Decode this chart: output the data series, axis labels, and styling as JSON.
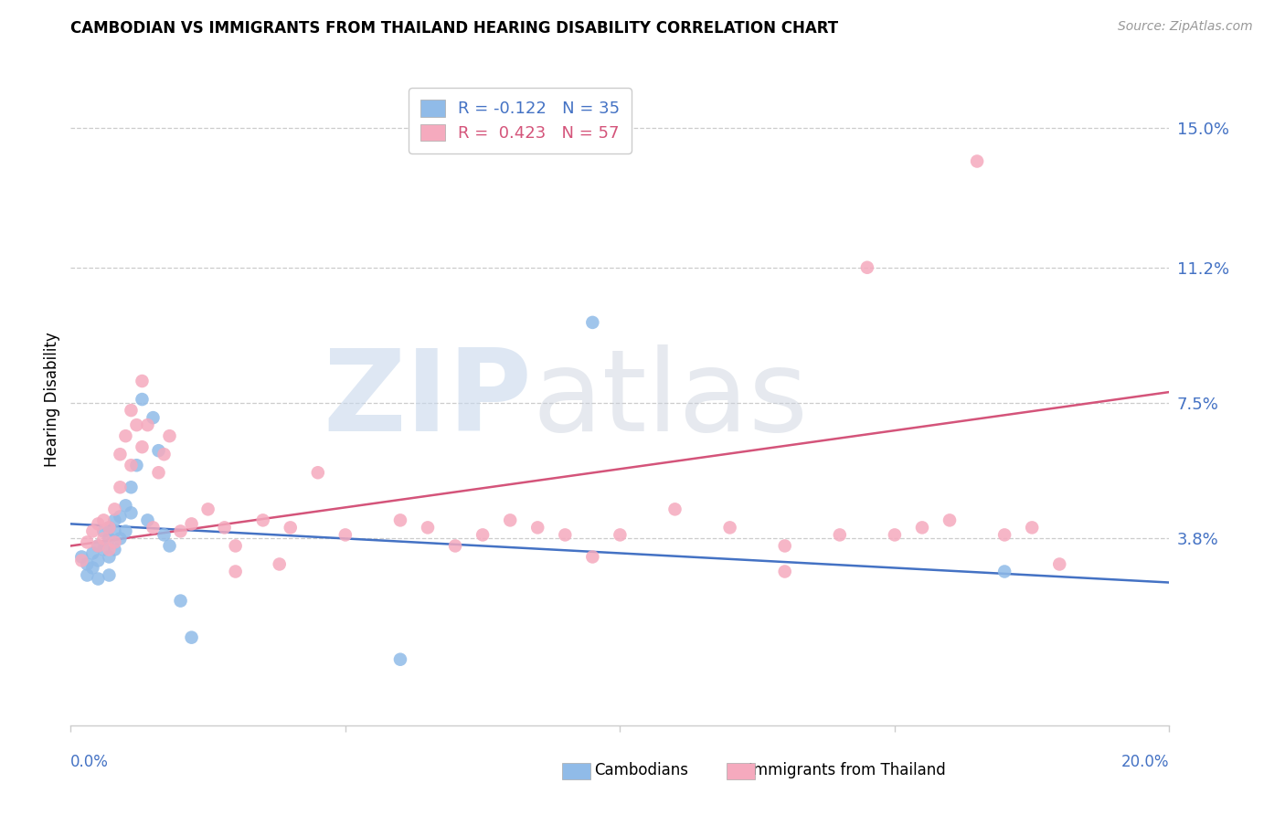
{
  "title": "CAMBODIAN VS IMMIGRANTS FROM THAILAND HEARING DISABILITY CORRELATION CHART",
  "source": "Source: ZipAtlas.com",
  "ylabel": "Hearing Disability",
  "xmin": 0.0,
  "xmax": 0.2,
  "ymin": -0.013,
  "ymax": 0.165,
  "cambodian_color": "#90BBE8",
  "thai_color": "#F5AABE",
  "blue_line_color": "#4472C4",
  "pink_line_color": "#D4547A",
  "axis_label_color": "#4472C4",
  "grid_color": "#CCCCCC",
  "legend_label1": "Cambodians",
  "legend_label2": "Immigrants from Thailand",
  "cambodian_R": -0.122,
  "cambodian_N": 35,
  "thai_R": 0.423,
  "thai_N": 57,
  "ytick_positions": [
    0.038,
    0.075,
    0.112,
    0.15
  ],
  "ytick_labels": [
    "3.8%",
    "7.5%",
    "11.2%",
    "15.0%"
  ],
  "blue_line_x": [
    0.0,
    0.2
  ],
  "blue_line_y": [
    0.042,
    0.026
  ],
  "pink_line_x": [
    0.0,
    0.2
  ],
  "pink_line_y": [
    0.036,
    0.078
  ],
  "cambodian_x": [
    0.002,
    0.003,
    0.003,
    0.004,
    0.004,
    0.005,
    0.005,
    0.005,
    0.006,
    0.006,
    0.007,
    0.007,
    0.007,
    0.007,
    0.008,
    0.008,
    0.008,
    0.009,
    0.009,
    0.01,
    0.01,
    0.011,
    0.011,
    0.012,
    0.013,
    0.014,
    0.015,
    0.016,
    0.017,
    0.018,
    0.02,
    0.022,
    0.06,
    0.095,
    0.17
  ],
  "cambodian_y": [
    0.033,
    0.031,
    0.028,
    0.034,
    0.03,
    0.036,
    0.032,
    0.027,
    0.04,
    0.035,
    0.041,
    0.038,
    0.033,
    0.028,
    0.043,
    0.04,
    0.035,
    0.044,
    0.038,
    0.047,
    0.04,
    0.052,
    0.045,
    0.058,
    0.076,
    0.043,
    0.071,
    0.062,
    0.039,
    0.036,
    0.021,
    0.011,
    0.005,
    0.097,
    0.029
  ],
  "thai_x": [
    0.002,
    0.003,
    0.004,
    0.005,
    0.005,
    0.006,
    0.006,
    0.007,
    0.007,
    0.008,
    0.008,
    0.009,
    0.009,
    0.01,
    0.011,
    0.011,
    0.012,
    0.013,
    0.013,
    0.014,
    0.015,
    0.016,
    0.017,
    0.018,
    0.02,
    0.022,
    0.025,
    0.028,
    0.03,
    0.035,
    0.04,
    0.045,
    0.05,
    0.06,
    0.065,
    0.07,
    0.075,
    0.08,
    0.085,
    0.09,
    0.095,
    0.1,
    0.11,
    0.12,
    0.13,
    0.14,
    0.145,
    0.15,
    0.155,
    0.16,
    0.165,
    0.17,
    0.175,
    0.18,
    0.13,
    0.03,
    0.038
  ],
  "thai_y": [
    0.032,
    0.037,
    0.04,
    0.042,
    0.036,
    0.043,
    0.038,
    0.041,
    0.035,
    0.046,
    0.037,
    0.061,
    0.052,
    0.066,
    0.073,
    0.058,
    0.069,
    0.081,
    0.063,
    0.069,
    0.041,
    0.056,
    0.061,
    0.066,
    0.04,
    0.042,
    0.046,
    0.041,
    0.036,
    0.043,
    0.041,
    0.056,
    0.039,
    0.043,
    0.041,
    0.036,
    0.039,
    0.043,
    0.041,
    0.039,
    0.033,
    0.039,
    0.046,
    0.041,
    0.029,
    0.039,
    0.112,
    0.039,
    0.041,
    0.043,
    0.141,
    0.039,
    0.041,
    0.031,
    0.036,
    0.029,
    0.031
  ]
}
